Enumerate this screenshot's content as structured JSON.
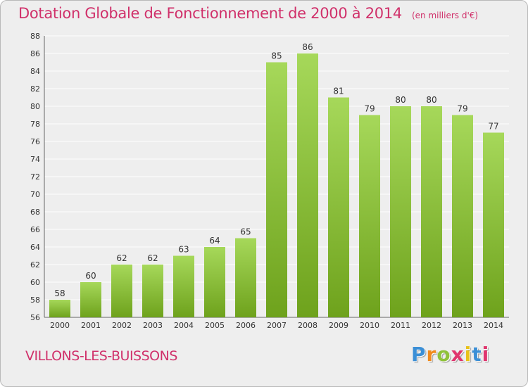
{
  "header": {
    "title": "Dotation Globale de Fonctionnement de 2000 à 2014",
    "subtitle": "(en milliers d'€)"
  },
  "footer": {
    "commune": "VILLONS-LES-BUISSONS",
    "brand": [
      "P",
      "r",
      "o",
      "x",
      "i",
      "t",
      "i"
    ],
    "brand_colors": [
      "#3b8fd6",
      "#f08a1c",
      "#8fc23b",
      "#e0356e",
      "#e8c21a",
      "#3b8fd6",
      "#e0356e"
    ]
  },
  "colors": {
    "title": "#d0306a",
    "bar_light": "#a6d85a",
    "bar_dark": "#6ea21c",
    "grid": "#ffffff"
  },
  "chart_data": {
    "type": "bar",
    "categories": [
      "2000",
      "2001",
      "2002",
      "2003",
      "2004",
      "2005",
      "2006",
      "2007",
      "2008",
      "2009",
      "2010",
      "2011",
      "2012",
      "2013",
      "2014"
    ],
    "values": [
      58,
      60,
      62,
      62,
      63,
      64,
      65,
      85,
      86,
      81,
      79,
      80,
      80,
      79,
      77
    ],
    "ylim": [
      56,
      88
    ],
    "yticks": [
      56,
      58,
      60,
      62,
      64,
      66,
      68,
      70,
      72,
      74,
      76,
      78,
      80,
      82,
      84,
      86,
      88
    ],
    "grid": true,
    "xlabel": "",
    "ylabel": ""
  }
}
